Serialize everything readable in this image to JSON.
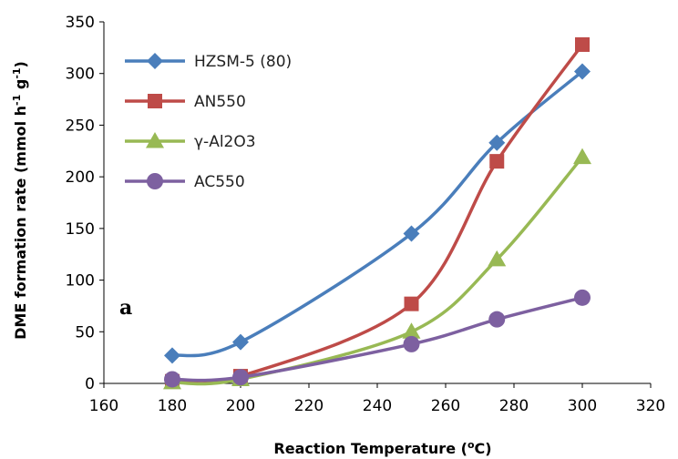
{
  "chart_data": {
    "type": "line",
    "title": "",
    "xlabel": "Reaction Temperature (",
    "xlabel_sup": "o",
    "xlabel_tail": "C)",
    "ylabel": "DME formation rate (mmol h",
    "ylabel_sup1": "-1",
    "ylabel_mid": " g",
    "ylabel_sup2": "-1",
    "ylabel_tail": ")",
    "xlim": [
      160,
      320
    ],
    "ylim": [
      0,
      350
    ],
    "xticks": [
      "160",
      "180",
      "200",
      "220",
      "240",
      "260",
      "280",
      "300",
      "320"
    ],
    "yticks": [
      "0",
      "50",
      "100",
      "150",
      "200",
      "250",
      "300",
      "350"
    ],
    "grid": false,
    "legend_position": "top-left",
    "panel_label": "a",
    "series": [
      {
        "name": "HZSM-5 (80)",
        "color": "#4a7ebb",
        "marker": "diamond",
        "x": [
          180,
          200,
          250,
          275,
          300
        ],
        "y": [
          27,
          40,
          145,
          233,
          302
        ]
      },
      {
        "name": "AN550",
        "color": "#be4b48",
        "marker": "square",
        "x": [
          180,
          200,
          250,
          275,
          300
        ],
        "y": [
          2,
          7,
          77,
          215,
          328
        ]
      },
      {
        "name": "γ-Al2O3",
        "color": "#98b954",
        "marker": "triangle",
        "x": [
          180,
          200,
          250,
          275,
          300
        ],
        "y": [
          1,
          4,
          50,
          120,
          219
        ]
      },
      {
        "name": "AC550",
        "color": "#7d60a0",
        "marker": "circle",
        "x": [
          180,
          200,
          250,
          275,
          300
        ],
        "y": [
          4,
          6,
          38,
          62,
          83
        ]
      }
    ]
  }
}
